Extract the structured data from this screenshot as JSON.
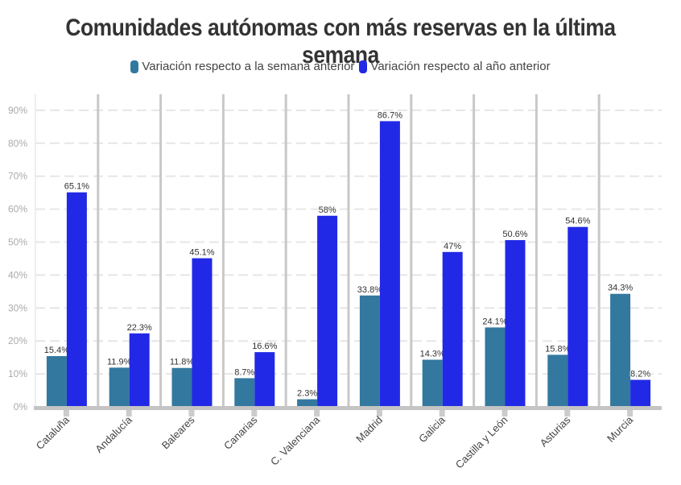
{
  "chart_data": {
    "type": "bar",
    "title": "Comunidades autónomas con más reservas en la última semana",
    "categories": [
      "Cataluña",
      "Andalucía",
      "Baleares",
      "Canarias",
      "C. Valenciana",
      "Madrid",
      "Galicia",
      "Castilla y León",
      "Asturias",
      "Murcia"
    ],
    "series": [
      {
        "name": "Variación respecto a la semana anterior",
        "color": "#33789f",
        "values": [
          15.4,
          11.9,
          11.8,
          8.7,
          2.3,
          33.8,
          14.3,
          24.1,
          15.8,
          34.3
        ],
        "labels": [
          "15.4%",
          "11.9%",
          "11.8%",
          "8.7%",
          "2.3%",
          "33.8%",
          "14.3%",
          "24.1%",
          "15.8%",
          "34.3%"
        ]
      },
      {
        "name": "Variación respecto al año anterior",
        "color": "#2129e6",
        "values": [
          65.1,
          22.3,
          45.1,
          16.6,
          58,
          86.7,
          47,
          50.6,
          54.6,
          8.2
        ],
        "labels": [
          "65.1%",
          "22.3%",
          "45.1%",
          "16.6%",
          "58%",
          "86.7%",
          "47%",
          "50.6%",
          "54.6%",
          "8.2%"
        ]
      }
    ],
    "ylim": [
      0,
      95
    ],
    "yticks": [
      "0%",
      "10%",
      "20%",
      "30%",
      "40%",
      "50%",
      "60%",
      "70%",
      "80%",
      "90%"
    ],
    "grid": true,
    "legend_position": "top"
  }
}
